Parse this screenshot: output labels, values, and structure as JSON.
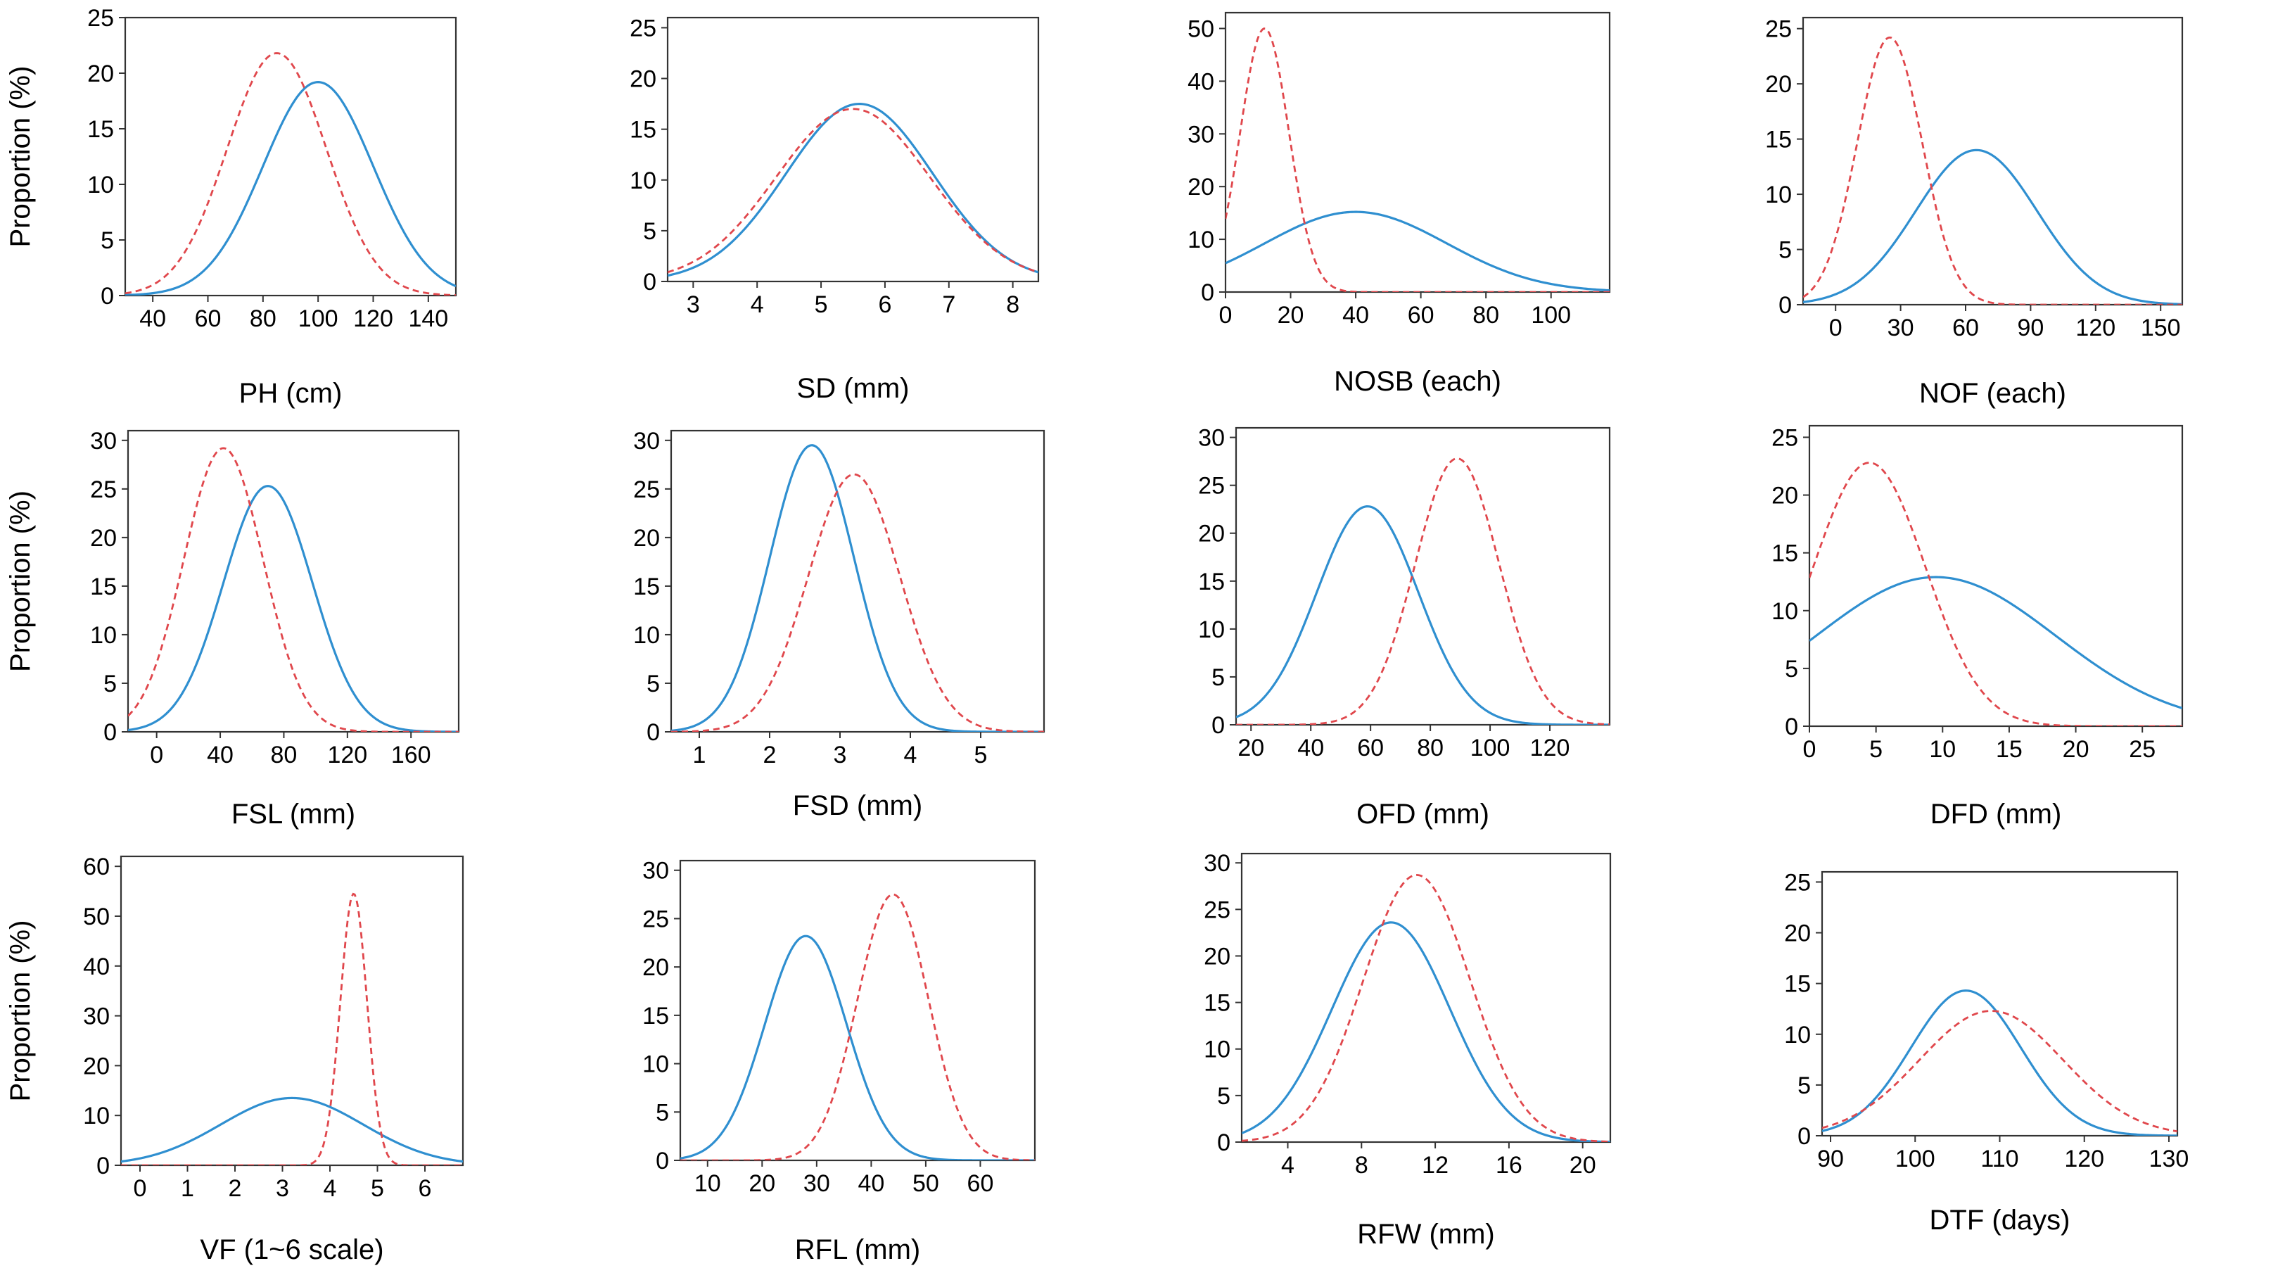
{
  "colors": {
    "series_solid": "#2f8fd0",
    "series_dashed": "#e0474c",
    "axis": "#333333"
  },
  "chart_data": [
    {
      "type": "line",
      "xlabel": "PH (cm)",
      "ylabel": "Proportion (%)",
      "xlim": [
        30,
        150
      ],
      "ylim": [
        0,
        25
      ],
      "xticks": [
        40,
        60,
        80,
        100,
        120,
        140
      ],
      "yticks": [
        0,
        5,
        10,
        15,
        20,
        25
      ],
      "series": [
        {
          "style": "solid",
          "curve": "normal",
          "mean": 100,
          "sd": 20,
          "peak": 19.2
        },
        {
          "style": "dashed",
          "curve": "normal",
          "mean": 85,
          "sd": 18,
          "peak": 21.8
        }
      ]
    },
    {
      "type": "line",
      "xlabel": "SD (mm)",
      "ylabel": "",
      "xlim": [
        2.6,
        8.4
      ],
      "ylim": [
        0,
        26
      ],
      "xticks": [
        3,
        4,
        5,
        6,
        7,
        8
      ],
      "yticks": [
        0,
        5,
        10,
        15,
        20,
        25
      ],
      "series": [
        {
          "style": "solid",
          "curve": "normal",
          "mean": 5.6,
          "sd": 1.15,
          "peak": 17.5
        },
        {
          "style": "dashed",
          "curve": "normal",
          "mean": 5.5,
          "sd": 1.2,
          "peak": 17.0
        }
      ]
    },
    {
      "type": "line",
      "xlabel": "NOSB (each)",
      "ylabel": "",
      "xlim": [
        0,
        118
      ],
      "ylim": [
        0,
        53
      ],
      "xticks": [
        0,
        20,
        40,
        60,
        80,
        100
      ],
      "yticks": [
        0,
        10,
        20,
        30,
        40,
        50
      ],
      "series": [
        {
          "style": "solid",
          "curve": "normal",
          "mean": 40,
          "sd": 28,
          "peak": 15.2
        },
        {
          "style": "dashed",
          "curve": "normal",
          "mean": 12,
          "sd": 7.5,
          "peak": 50
        }
      ]
    },
    {
      "type": "line",
      "xlabel": "NOF (each)",
      "ylabel": "",
      "xlim": [
        -15,
        160
      ],
      "ylim": [
        0,
        26
      ],
      "xticks": [
        0,
        30,
        60,
        90,
        120,
        150
      ],
      "yticks": [
        0,
        5,
        10,
        15,
        20,
        25
      ],
      "series": [
        {
          "style": "solid",
          "curve": "normal",
          "mean": 65,
          "sd": 28,
          "peak": 14
        },
        {
          "style": "dashed",
          "curve": "normal",
          "mean": 25,
          "sd": 15,
          "peak": 24.2
        }
      ]
    },
    {
      "type": "line",
      "xlabel": "FSL (mm)",
      "ylabel": "Proportion (%)",
      "xlim": [
        -18,
        190
      ],
      "ylim": [
        0,
        31
      ],
      "xticks": [
        0,
        40,
        80,
        120,
        160
      ],
      "yticks": [
        0,
        5,
        10,
        15,
        20,
        25,
        30
      ],
      "series": [
        {
          "style": "solid",
          "curve": "normal",
          "mean": 70,
          "sd": 28,
          "peak": 25.3
        },
        {
          "style": "dashed",
          "curve": "normal",
          "mean": 42,
          "sd": 25,
          "peak": 29.2
        }
      ]
    },
    {
      "type": "line",
      "xlabel": "FSD (mm)",
      "ylabel": "",
      "xlim": [
        0.6,
        5.9
      ],
      "ylim": [
        0,
        31
      ],
      "xticks": [
        1,
        2,
        3,
        4,
        5
      ],
      "yticks": [
        0,
        5,
        10,
        15,
        20,
        25,
        30
      ],
      "series": [
        {
          "style": "solid",
          "curve": "normal",
          "mean": 2.6,
          "sd": 0.6,
          "peak": 29.5
        },
        {
          "style": "dashed",
          "curve": "normal",
          "mean": 3.2,
          "sd": 0.65,
          "peak": 26.5
        }
      ]
    },
    {
      "type": "line",
      "xlabel": "OFD (mm)",
      "ylabel": "",
      "xlim": [
        15,
        140
      ],
      "ylim": [
        0,
        31
      ],
      "xticks": [
        20,
        40,
        60,
        80,
        100,
        120
      ],
      "yticks": [
        0,
        5,
        10,
        15,
        20,
        25,
        30
      ],
      "series": [
        {
          "style": "solid",
          "curve": "normal",
          "mean": 59,
          "sd": 17,
          "peak": 22.8
        },
        {
          "style": "dashed",
          "curve": "normal",
          "mean": 89,
          "sd": 14,
          "peak": 27.8
        }
      ]
    },
    {
      "type": "line",
      "xlabel": "DFD (mm)",
      "ylabel": "",
      "xlim": [
        0,
        28
      ],
      "ylim": [
        0,
        26
      ],
      "xticks": [
        0,
        5,
        10,
        15,
        20,
        25
      ],
      "yticks": [
        0,
        5,
        10,
        15,
        20,
        25
      ],
      "series": [
        {
          "style": "solid",
          "curve": "normal",
          "mean": 9.5,
          "sd": 9,
          "peak": 12.9
        },
        {
          "style": "dashed",
          "curve": "normal",
          "mean": 4.5,
          "sd": 4.2,
          "peak": 22.8
        }
      ]
    },
    {
      "type": "line",
      "xlabel": "VF (1~6 scale)",
      "ylabel": "Proportion (%)",
      "xlim": [
        -0.4,
        6.8
      ],
      "ylim": [
        0,
        62
      ],
      "xticks": [
        0,
        1,
        2,
        3,
        4,
        5,
        6
      ],
      "yticks": [
        0,
        10,
        20,
        30,
        40,
        50,
        60
      ],
      "series": [
        {
          "style": "solid",
          "curve": "normal",
          "mean": 3.2,
          "sd": 1.5,
          "peak": 13.5
        },
        {
          "style": "dashed",
          "curve": "normal",
          "mean": 4.5,
          "sd": 0.28,
          "peak": 54.5
        }
      ]
    },
    {
      "type": "line",
      "xlabel": "RFL (mm)",
      "ylabel": "",
      "xlim": [
        5,
        70
      ],
      "ylim": [
        0,
        31
      ],
      "xticks": [
        10,
        20,
        30,
        40,
        50,
        60
      ],
      "yticks": [
        0,
        5,
        10,
        15,
        20,
        25,
        30
      ],
      "series": [
        {
          "style": "solid",
          "curve": "normal",
          "mean": 28,
          "sd": 7.5,
          "peak": 23.2
        },
        {
          "style": "dashed",
          "curve": "normal",
          "mean": 44,
          "sd": 6.5,
          "peak": 27.5
        }
      ]
    },
    {
      "type": "line",
      "xlabel": "RFW (mm)",
      "ylabel": "",
      "xlim": [
        1.5,
        21.5
      ],
      "ylim": [
        0,
        31
      ],
      "xticks": [
        4,
        8,
        12,
        16,
        20
      ],
      "yticks": [
        0,
        5,
        10,
        15,
        20,
        25,
        30
      ],
      "series": [
        {
          "style": "solid",
          "curve": "normal",
          "mean": 9.6,
          "sd": 3.2,
          "peak": 23.6
        },
        {
          "style": "dashed",
          "curve": "normal",
          "mean": 11,
          "sd": 2.9,
          "peak": 28.7
        }
      ]
    },
    {
      "type": "line",
      "xlabel": "DTF (days)",
      "ylabel": "",
      "xlim": [
        89,
        131
      ],
      "ylim": [
        0,
        26
      ],
      "xticks": [
        90,
        100,
        110,
        120,
        130
      ],
      "yticks": [
        0,
        5,
        10,
        15,
        20,
        25
      ],
      "series": [
        {
          "style": "solid",
          "curve": "normal",
          "mean": 106,
          "sd": 6.5,
          "peak": 14.3
        },
        {
          "style": "dashed",
          "curve": "normal",
          "mean": 109,
          "sd": 8.5,
          "peak": 12.3
        }
      ]
    }
  ]
}
